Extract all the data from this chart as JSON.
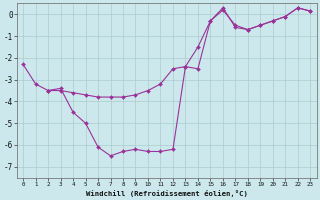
{
  "line1_x": [
    0,
    1,
    2,
    3,
    4,
    5,
    6,
    7,
    8,
    9,
    10,
    11,
    12,
    13,
    14,
    15,
    16,
    17,
    18,
    19,
    20,
    21,
    22,
    23
  ],
  "line1_y": [
    -2.3,
    -3.2,
    -3.5,
    -3.5,
    -3.6,
    -3.7,
    -3.8,
    -3.8,
    -3.8,
    -3.7,
    -3.5,
    -3.2,
    -2.5,
    -2.4,
    -1.5,
    -0.3,
    0.2,
    -0.5,
    -0.7,
    -0.5,
    -0.3,
    -0.1,
    0.3,
    0.15
  ],
  "line2_x": [
    2,
    3,
    4,
    5,
    6,
    7,
    8,
    9,
    10,
    11,
    12,
    13,
    14,
    15,
    16,
    17,
    18,
    19,
    20,
    21,
    22,
    23
  ],
  "line2_y": [
    -3.5,
    -3.4,
    -4.5,
    -5.0,
    -6.1,
    -6.5,
    -6.3,
    -6.2,
    -6.3,
    -6.3,
    -6.2,
    -2.4,
    -2.5,
    -0.3,
    0.3,
    -0.6,
    -0.7,
    -0.5,
    -0.3,
    -0.1,
    0.3,
    0.15
  ],
  "line_color": "#993399",
  "bg_color": "#cce8ec",
  "grid_color": "#aacccc",
  "xlabel": "Windchill (Refroidissement éolien,°C)",
  "ylim": [
    -7.5,
    0.5
  ],
  "xlim": [
    -0.5,
    23.5
  ],
  "yticks": [
    0,
    -1,
    -2,
    -3,
    -4,
    -5,
    -6,
    -7
  ],
  "xticks": [
    0,
    1,
    2,
    3,
    4,
    5,
    6,
    7,
    8,
    9,
    10,
    11,
    12,
    13,
    14,
    15,
    16,
    17,
    18,
    19,
    20,
    21,
    22,
    23
  ]
}
